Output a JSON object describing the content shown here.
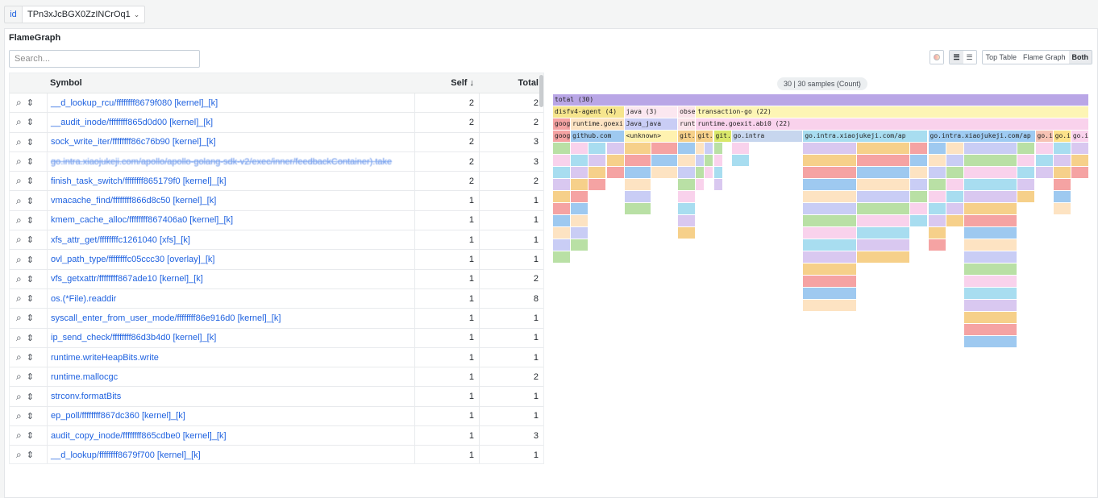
{
  "variable": {
    "label": "id",
    "value": "TPn3xJcBGX0ZzINCrOq1"
  },
  "panel": {
    "title": "FlameGraph",
    "search_placeholder": "Search..."
  },
  "view_modes": [
    "Top Table",
    "Flame Graph",
    "Both"
  ],
  "active_view": "Both",
  "table": {
    "headers": {
      "symbol": "Symbol",
      "self": "Self",
      "total": "Total",
      "sort_indicator": "↓"
    },
    "rows": [
      {
        "symbol": "__d_lookup_rcu/ffffffff8679f080 [kernel]_[k]",
        "self": "2",
        "total": "2"
      },
      {
        "symbol": "__audit_inode/ffffffff865d0d00 [kernel]_[k]",
        "self": "2",
        "total": "2"
      },
      {
        "symbol": "sock_write_iter/ffffffff86c76b90 [kernel]_[k]",
        "self": "2",
        "total": "3"
      },
      {
        "symbol": "go.intra.xiaojukeji.com/apollo/apollo-golang-sdk-v2/exec/inner/feedbackContainer).take",
        "self": "2",
        "total": "3",
        "blurred": true
      },
      {
        "symbol": "finish_task_switch/ffffffff865179f0 [kernel]_[k]",
        "self": "2",
        "total": "2"
      },
      {
        "symbol": "vmacache_find/ffffffff866d8c50 [kernel]_[k]",
        "self": "1",
        "total": "1"
      },
      {
        "symbol": "kmem_cache_alloc/ffffffff867406a0 [kernel]_[k]",
        "self": "1",
        "total": "1"
      },
      {
        "symbol": "xfs_attr_get/ffffffffc1261040 [xfs]_[k]",
        "self": "1",
        "total": "1"
      },
      {
        "symbol": "ovl_path_type/ffffffffc05ccc30 [overlay]_[k]",
        "self": "1",
        "total": "1"
      },
      {
        "symbol": "vfs_getxattr/ffffffff867ade10 [kernel]_[k]",
        "self": "1",
        "total": "2"
      },
      {
        "symbol": "os.(*File).readdir",
        "self": "1",
        "total": "8"
      },
      {
        "symbol": "syscall_enter_from_user_mode/ffffffff86e916d0 [kernel]_[k]",
        "self": "1",
        "total": "1"
      },
      {
        "symbol": "ip_send_check/ffffffff86d3b4d0 [kernel]_[k]",
        "self": "1",
        "total": "1"
      },
      {
        "symbol": "runtime.writeHeapBits.write",
        "self": "1",
        "total": "1"
      },
      {
        "symbol": "runtime.mallocgc",
        "self": "1",
        "total": "2"
      },
      {
        "symbol": "strconv.formatBits",
        "self": "1",
        "total": "1"
      },
      {
        "symbol": "ep_poll/ffffffff867dc360 [kernel]_[k]",
        "self": "1",
        "total": "1"
      },
      {
        "symbol": "audit_copy_inode/ffffffff865cdbe0 [kernel]_[k]",
        "self": "1",
        "total": "3"
      },
      {
        "symbol": "__d_lookup/ffffffff8679f700 [kernel]_[k]",
        "self": "1",
        "total": "1"
      }
    ]
  },
  "flamegraph": {
    "header": "30 | 30 samples (Count)",
    "frames": [
      {
        "label": "total (30)",
        "color": "#b9a6e6",
        "level": 0,
        "start": 0,
        "span": 30
      },
      {
        "label": "disfv4-agent (4)",
        "color": "#f6e58d",
        "level": 1,
        "start": 0,
        "span": 4
      },
      {
        "label": "java (3)",
        "color": "#fbe7f0",
        "level": 1,
        "start": 4,
        "span": 3
      },
      {
        "label": "obse",
        "color": "#fbe3ea",
        "level": 1,
        "start": 7,
        "span": 1
      },
      {
        "label": "transaction-go (22)",
        "color": "#fdf5b5",
        "level": 1,
        "start": 8,
        "span": 22
      },
      {
        "label": "goog",
        "color": "#f5a3a3",
        "level": 2,
        "start": 0,
        "span": 1
      },
      {
        "label": "runtime.goexi",
        "color": "#fde3c2",
        "level": 2,
        "start": 1,
        "span": 3
      },
      {
        "label": "Java_java",
        "color": "#c9cdf5",
        "level": 2,
        "start": 4,
        "span": 3
      },
      {
        "label": "runt",
        "color": "#fbe3ea",
        "level": 2,
        "start": 7,
        "span": 1
      },
      {
        "label": "runtime.goexit.abi0 (22)",
        "color": "#f9d2ec",
        "level": 2,
        "start": 8,
        "span": 22
      },
      {
        "label": "goog",
        "color": "#f5a3a3",
        "level": 3,
        "start": 0,
        "span": 1
      },
      {
        "label": "github.com",
        "color": "#9ec9f0",
        "level": 3,
        "start": 1,
        "span": 3
      },
      {
        "label": "<unknown>",
        "color": "#fff2b0",
        "level": 3,
        "start": 4,
        "span": 3
      },
      {
        "label": "git.",
        "color": "#f6d08a",
        "level": 3,
        "start": 7,
        "span": 1
      },
      {
        "label": "git.",
        "color": "#f6d08a",
        "level": 3,
        "start": 8,
        "span": 1
      },
      {
        "label": "git.",
        "color": "#d9e86a",
        "level": 3,
        "start": 9,
        "span": 1
      },
      {
        "label": "go.intra",
        "color": "#c7d6ee",
        "level": 3,
        "start": 10,
        "span": 4
      },
      {
        "label": "go.intra.xiaojukeji.com/ap",
        "color": "#a8ddf0",
        "level": 3,
        "start": 14,
        "span": 7
      },
      {
        "label": "go.intra.xiaojukeji.com/ap",
        "color": "#9ecbf2",
        "level": 3,
        "start": 21,
        "span": 6
      },
      {
        "label": "go.i",
        "color": "#f6c3b4",
        "level": 3,
        "start": 27,
        "span": 1
      },
      {
        "label": "go.i",
        "color": "#fce28a",
        "level": 3,
        "start": 28,
        "span": 1
      },
      {
        "label": "go.i",
        "color": "#f9d2ec",
        "level": 3,
        "start": 29,
        "span": 1
      }
    ]
  }
}
